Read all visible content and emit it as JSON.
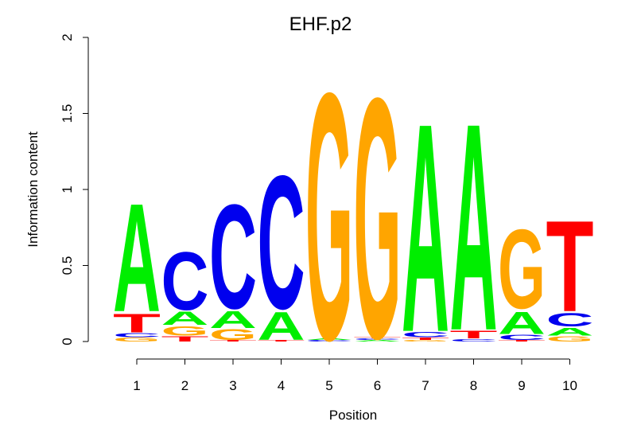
{
  "chart_data": {
    "type": "sequence_logo",
    "title": "EHF.p2",
    "xlabel": "Position",
    "ylabel": "Information content",
    "ylim": [
      0,
      2
    ],
    "yticks": [
      "0",
      "0.5",
      "1",
      "1.5",
      "2"
    ],
    "positions": [
      "1",
      "2",
      "3",
      "4",
      "5",
      "6",
      "7",
      "8",
      "9",
      "10"
    ],
    "colors": {
      "A": "#00ee00",
      "C": "#0000ee",
      "G": "#ffa500",
      "T": "#ff0000"
    },
    "stacks": [
      [
        {
          "l": "G",
          "v": 0.03
        },
        {
          "l": "C",
          "v": 0.03
        },
        {
          "l": "T",
          "v": 0.14
        },
        {
          "l": "A",
          "v": 0.82
        }
      ],
      [
        {
          "l": "T",
          "v": 0.04
        },
        {
          "l": "G",
          "v": 0.07
        },
        {
          "l": "A",
          "v": 0.1
        },
        {
          "l": "C",
          "v": 0.44
        }
      ],
      [
        {
          "l": "T",
          "v": 0.01
        },
        {
          "l": "G",
          "v": 0.08
        },
        {
          "l": "A",
          "v": 0.13
        },
        {
          "l": "C",
          "v": 0.79
        }
      ],
      [
        {
          "l": "T",
          "v": 0.01
        },
        {
          "l": "A",
          "v": 0.21
        },
        {
          "l": "C",
          "v": 1.01
        }
      ],
      [
        {
          "l": "C",
          "v": 0.01
        },
        {
          "l": "A",
          "v": 0.01
        },
        {
          "l": "G",
          "v": 1.87
        }
      ],
      [
        {
          "l": "A",
          "v": 0.01
        },
        {
          "l": "C",
          "v": 0.01
        },
        {
          "l": "T",
          "v": 0.01
        },
        {
          "l": "G",
          "v": 1.82
        }
      ],
      [
        {
          "l": "G",
          "v": 0.01
        },
        {
          "l": "T",
          "v": 0.02
        },
        {
          "l": "C",
          "v": 0.04
        },
        {
          "l": "A",
          "v": 1.58
        }
      ],
      [
        {
          "l": "C",
          "v": 0.02
        },
        {
          "l": "T",
          "v": 0.06
        },
        {
          "l": "A",
          "v": 1.57
        }
      ],
      [
        {
          "l": "T",
          "v": 0.01
        },
        {
          "l": "C",
          "v": 0.04
        },
        {
          "l": "A",
          "v": 0.17
        },
        {
          "l": "G",
          "v": 0.6
        }
      ],
      [
        {
          "l": "G",
          "v": 0.04
        },
        {
          "l": "A",
          "v": 0.06
        },
        {
          "l": "C",
          "v": 0.1
        },
        {
          "l": "T",
          "v": 0.69
        }
      ]
    ]
  }
}
